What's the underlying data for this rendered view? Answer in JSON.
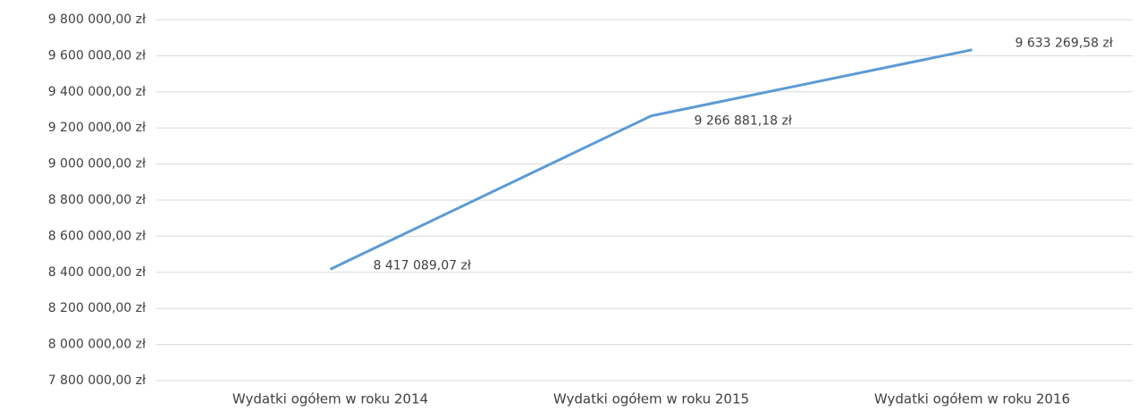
{
  "chart_data": {
    "type": "line",
    "categories": [
      "Wydatki ogółem w roku 2014",
      "Wydatki ogółem w roku 2015",
      "Wydatki ogółem w roku 2016"
    ],
    "series": [
      {
        "name": "Wydatki ogółem",
        "color": "#5b9bd5",
        "values": [
          8417089.07,
          9266881.18,
          9633269.58
        ],
        "value_labels": [
          "8 417 089,07 zł",
          "9 266 881,18 zł",
          "9 633 269,58 zł"
        ]
      }
    ],
    "ylim": [
      7800000,
      9800000
    ],
    "yticks": [
      {
        "value": 7800000,
        "label": "7 800 000,00 zł"
      },
      {
        "value": 8000000,
        "label": "8 000 000,00 zł"
      },
      {
        "value": 8200000,
        "label": "8 200 000,00 zł"
      },
      {
        "value": 8400000,
        "label": "8 400 000,00 zł"
      },
      {
        "value": 8600000,
        "label": "8 600 000,00 zł"
      },
      {
        "value": 8800000,
        "label": "8 800 000,00 zł"
      },
      {
        "value": 9000000,
        "label": "9 000 000,00 zł"
      },
      {
        "value": 9200000,
        "label": "9 200 000,00 zł"
      },
      {
        "value": 9400000,
        "label": "9 400 000,00 zł"
      },
      {
        "value": 9600000,
        "label": "9 600 000,00 zł"
      },
      {
        "value": 9800000,
        "label": "9 800 000,00 zł"
      }
    ],
    "grid": true
  }
}
